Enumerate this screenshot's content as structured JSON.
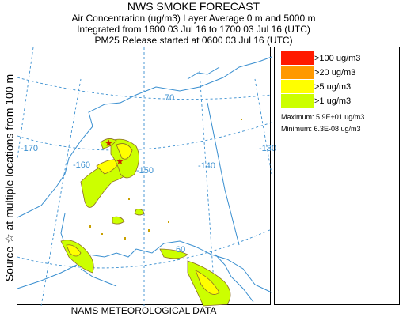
{
  "header": {
    "title": "NWS SMOKE FORECAST",
    "line1": "Air Concentration (ug/m3) Layer Average    0 m and  5000 m",
    "line2": "Integrated from 1600 03 Jul 16 to 1700 03 Jul 16 (UTC)",
    "line3": "PM25 Release started at 0600 03 Jul 16 (UTC)"
  },
  "side_label": "Source ☆  at multiple locations     from   100 m",
  "footer": "NAMS METEOROLOGICAL DATA",
  "legend": {
    "items": [
      {
        "label": ">100 ug/m3",
        "color": "#ff1a00"
      },
      {
        "label": ">20 ug/m3",
        "color": "#ff9900"
      },
      {
        "label": ">5 ug/m3",
        "color": "#ffff00"
      },
      {
        "label": ">1 ug/m3",
        "color": "#ccff00"
      }
    ],
    "maximum": "Maximum: 5.9E+01 ug/m3",
    "minimum": "Minimum: 6.3E-08 ug/m3"
  },
  "map": {
    "longitude_labels": [
      "-170",
      "-160",
      "-150",
      "-140",
      "-130"
    ],
    "latitude_labels": [
      "70",
      "60"
    ],
    "grid_color": "#3a8fd0",
    "coast_color": "#3a8fd0",
    "smoke_outline_color": "#8b6b2a"
  }
}
